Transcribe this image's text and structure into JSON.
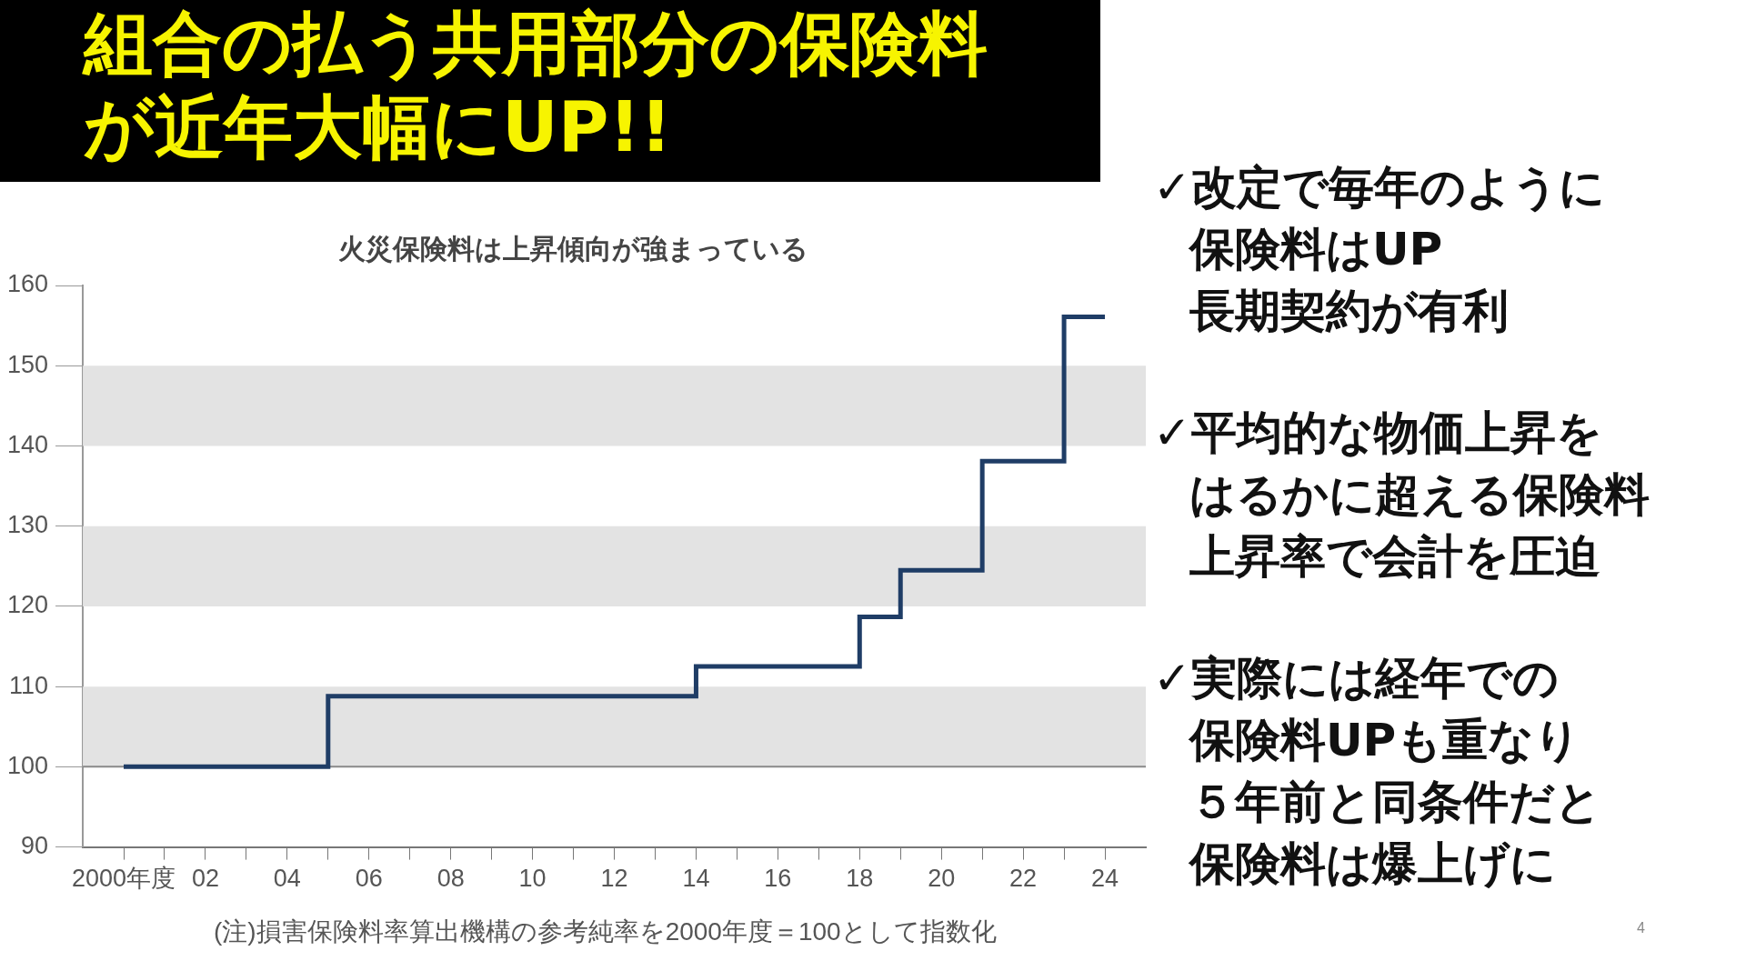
{
  "chart_data": {
    "type": "step",
    "title": "組合の払う共用部分の保険料が近年大幅にUP!!",
    "subtitle": "火災保険料は上昇傾向が強まっている",
    "x": [
      2000,
      2005,
      2014,
      2018,
      2019,
      2021,
      2023,
      2024
    ],
    "series": [
      {
        "color": "#1f3d66",
        "values": [
          100,
          108.8,
          112.5,
          118.7,
          124.5,
          138.1,
          156.1,
          156.1
        ]
      }
    ],
    "xlim": [
      1999,
      2025
    ],
    "xticks": [
      {
        "value": 2000,
        "label": "2000年度"
      },
      {
        "value": 2001,
        "label": null
      },
      {
        "value": 2002,
        "label": "02"
      },
      {
        "value": 2003,
        "label": null
      },
      {
        "value": 2004,
        "label": "04"
      },
      {
        "value": 2005,
        "label": null
      },
      {
        "value": 2006,
        "label": "06"
      },
      {
        "value": 2007,
        "label": null
      },
      {
        "value": 2008,
        "label": "08"
      },
      {
        "value": 2009,
        "label": null
      },
      {
        "value": 2010,
        "label": "10"
      },
      {
        "value": 2011,
        "label": null
      },
      {
        "value": 2012,
        "label": "12"
      },
      {
        "value": 2013,
        "label": null
      },
      {
        "value": 2014,
        "label": "14"
      },
      {
        "value": 2015,
        "label": null
      },
      {
        "value": 2016,
        "label": "16"
      },
      {
        "value": 2017,
        "label": null
      },
      {
        "value": 2018,
        "label": "18"
      },
      {
        "value": 2019,
        "label": null
      },
      {
        "value": 2020,
        "label": "20"
      },
      {
        "value": 2021,
        "label": null
      },
      {
        "value": 2022,
        "label": "22"
      },
      {
        "value": 2023,
        "label": null
      },
      {
        "value": 2024,
        "label": "24"
      }
    ],
    "ylim": [
      90,
      160
    ],
    "yticks": [
      90,
      100,
      110,
      120,
      130,
      140,
      150,
      160
    ],
    "bands": [
      {
        "axis": "y",
        "from": 100,
        "to": 110,
        "color": "#e3e3e3"
      },
      {
        "axis": "y",
        "from": 120,
        "to": 130,
        "color": "#e3e3e3"
      },
      {
        "axis": "y",
        "from": 140,
        "to": 150,
        "color": "#e3e3e3"
      }
    ],
    "ref_lines": [
      {
        "axis": "y",
        "value": 100,
        "color": "#8a8a8a"
      }
    ],
    "annotations": [
      "(注)損害保険料率算出機構の参考純率を2000年度＝100として指数化",
      "✓改定で毎年のように",
      "保険料はUP",
      "長期契約が有利",
      "✓平均的な物価上昇を",
      "はるかに超える保険料",
      "上昇率で会計を圧迫",
      "✓実際には経年での",
      "保険料UPも重なり",
      "５年前と同条件だと",
      "保険料は爆上げに",
      "4"
    ]
  }
}
